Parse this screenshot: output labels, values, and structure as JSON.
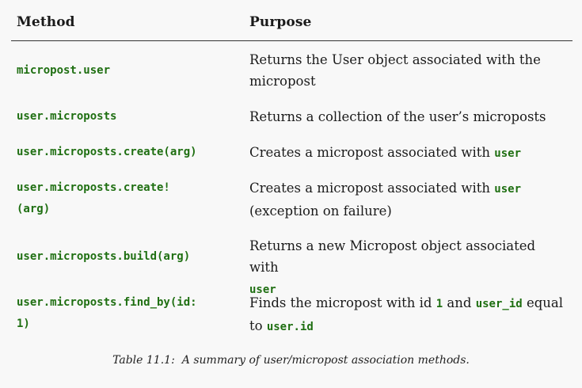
{
  "header": {
    "method": "Method",
    "purpose": "Purpose"
  },
  "rows": [
    {
      "method_lines": [
        "micropost.user"
      ],
      "purpose_lines": [
        [
          "Returns the User object associated with the"
        ],
        [
          "micropost"
        ]
      ]
    },
    {
      "method_lines": [
        "user.microposts"
      ],
      "purpose_lines": [
        [
          "Returns a collection of the user’s microposts"
        ]
      ]
    },
    {
      "method_lines": [
        "user.microposts.create(arg)"
      ],
      "purpose_text": "Creates a micropost associated with ",
      "purpose_code": "user"
    },
    {
      "method_lines": [
        "user.microposts.create!",
        "(arg)"
      ],
      "purpose_text": "Creates a micropost associated with ",
      "purpose_code": "user",
      "purpose_line2": "(exception on failure)"
    },
    {
      "method_lines": [
        "user.microposts.build(arg)"
      ],
      "purpose_text": "Returns a new Micropost object associated with",
      "purpose_code": "user"
    },
    {
      "method_lines": [
        "user.microposts.find_by(id:",
        "1)"
      ],
      "purpose_parts": {
        "t1": "Finds the micropost with id ",
        "c1": "1",
        "t2": " and ",
        "c2": "user_id",
        "t3": " equal",
        "t4": "to ",
        "c3": "user.id"
      }
    }
  ],
  "caption": {
    "label": "Table 11.1:",
    "text": "A summary of user/micropost association methods."
  },
  "colors": {
    "code_green": "#1f6f12",
    "text": "#1a1a1a",
    "background": "#f8f8f8"
  }
}
